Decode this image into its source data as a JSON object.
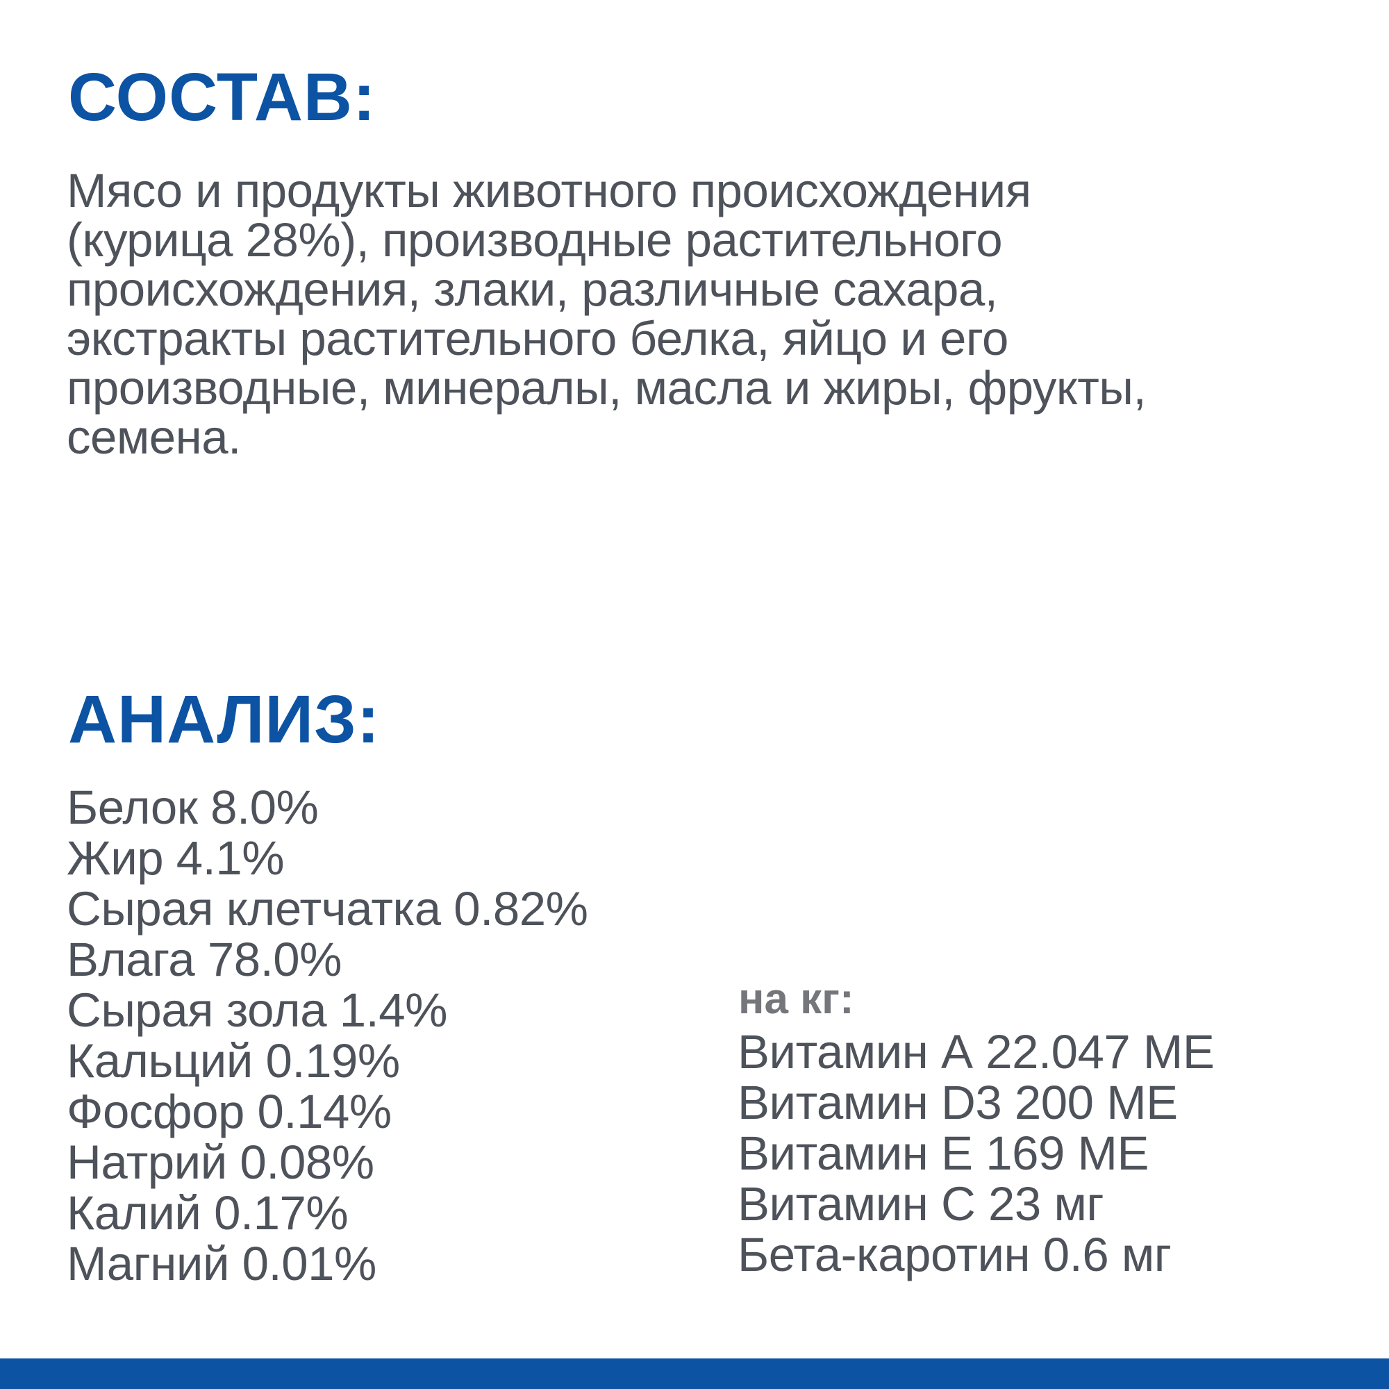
{
  "colors": {
    "accent_blue": "#0C53A3",
    "body_text_gray": "#4E525A",
    "muted_heading_gray": "#74767B",
    "background": "#FFFFFF"
  },
  "composition": {
    "heading": "СОСТАВ:",
    "lines": [
      "Мясо и продукты животного происхождения",
      "(курица 28%), производные растительного",
      "происхождения, злаки, различные сахара,",
      "экстракты растительного белка, яйцо и его",
      "производные, минералы, масла и жиры, фрукты,",
      "семена."
    ]
  },
  "analysis": {
    "heading": "АНАЛИЗ:",
    "items": [
      "Белок 8.0%",
      "Жир 4.1%",
      "Сырая клетчатка 0.82%",
      "Влага 78.0%",
      "Сырая зола 1.4%",
      "Кальций 0.19%",
      "Фосфор 0.14%",
      "Натрий 0.08%",
      "Калий 0.17%",
      "Магний 0.01%"
    ],
    "per_kg": {
      "heading": "на кг:",
      "items": [
        "Витамин А 22.047 МЕ",
        "Витамин D3 200 МЕ",
        "Витамин Е 169 МЕ",
        "Витамин С 23 мг",
        "Бета-каротин 0.6 мг"
      ]
    }
  }
}
